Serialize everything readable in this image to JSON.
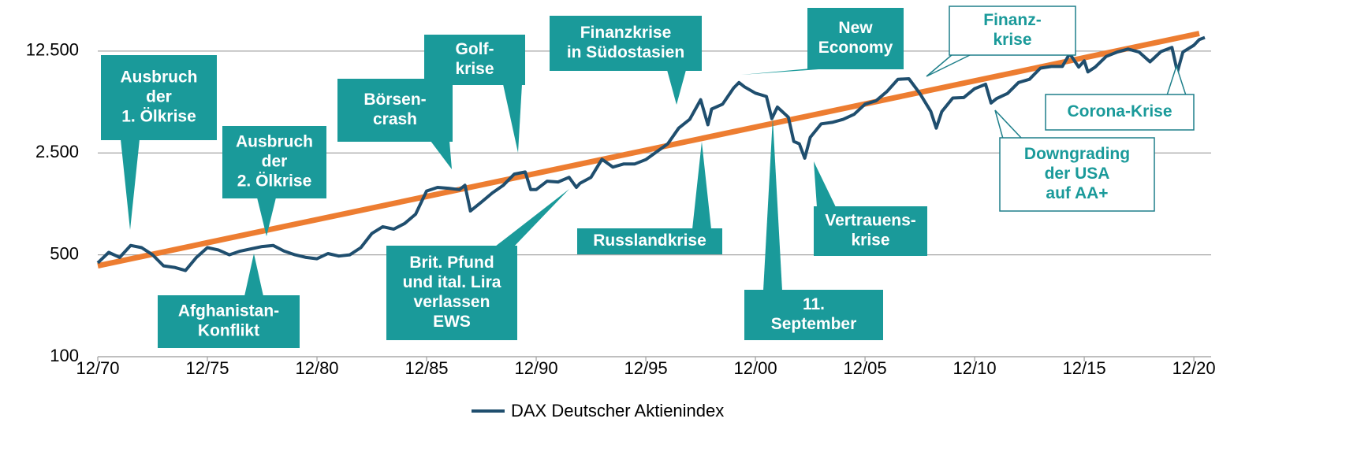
{
  "chart_data": {
    "type": "line",
    "legend": "bottom",
    "grid": true,
    "log_scale_y": true,
    "ylim": [
      100,
      16000
    ],
    "yticks": [
      100,
      500,
      {
        "value": 2500,
        "label": "2.500"
      },
      {
        "value": 12500,
        "label": "12.500"
      }
    ],
    "xlim": [
      "1970-12",
      "2021-06"
    ],
    "xticks": [
      {
        "value": "1970-12",
        "label": "12/70"
      },
      {
        "value": "1975-12",
        "label": "12/75"
      },
      {
        "value": "1980-12",
        "label": "12/80"
      },
      {
        "value": "1985-12",
        "label": "12/85"
      },
      {
        "value": "1990-12",
        "label": "12/90"
      },
      {
        "value": "1995-12",
        "label": "12/95"
      },
      {
        "value": "2000-12",
        "label": "12/00"
      },
      {
        "value": "2005-12",
        "label": "12/05"
      },
      {
        "value": "2010-12",
        "label": "12/10"
      },
      {
        "value": "2015-12",
        "label": "12/15"
      },
      {
        "value": "2020-12",
        "label": "12/20"
      }
    ],
    "series": [
      {
        "name": "DAX Deutscher Aktienindex",
        "color": "#1f4e6e",
        "x": [
          "1970-12",
          "1971-06",
          "1971-12",
          "1972-06",
          "1972-12",
          "1973-06",
          "1973-12",
          "1974-06",
          "1974-12",
          "1975-06",
          "1975-12",
          "1976-06",
          "1976-12",
          "1977-06",
          "1977-12",
          "1978-06",
          "1978-12",
          "1979-06",
          "1979-12",
          "1980-06",
          "1980-12",
          "1981-06",
          "1981-12",
          "1982-06",
          "1982-12",
          "1983-06",
          "1983-12",
          "1984-06",
          "1984-12",
          "1985-06",
          "1985-12",
          "1986-06",
          "1986-12",
          "1987-06",
          "1987-09",
          "1987-12",
          "1988-06",
          "1988-12",
          "1989-06",
          "1989-12",
          "1990-06",
          "1990-09",
          "1990-12",
          "1991-06",
          "1991-12",
          "1992-06",
          "1992-10",
          "1992-12",
          "1993-06",
          "1993-12",
          "1994-06",
          "1994-12",
          "1995-06",
          "1995-12",
          "1996-06",
          "1996-12",
          "1997-06",
          "1997-12",
          "1998-06",
          "1998-10",
          "1998-12",
          "1999-06",
          "1999-12",
          "2000-03",
          "2000-06",
          "2000-12",
          "2001-06",
          "2001-09",
          "2001-12",
          "2002-06",
          "2002-09",
          "2002-12",
          "2003-03",
          "2003-06",
          "2003-12",
          "2004-06",
          "2004-12",
          "2005-06",
          "2005-12",
          "2006-06",
          "2006-12",
          "2007-06",
          "2007-12",
          "2008-06",
          "2008-12",
          "2009-03",
          "2009-06",
          "2009-12",
          "2010-06",
          "2010-12",
          "2011-06",
          "2011-09",
          "2011-12",
          "2012-06",
          "2012-12",
          "2013-06",
          "2013-12",
          "2014-06",
          "2014-12",
          "2015-04",
          "2015-09",
          "2015-12",
          "2016-02",
          "2016-06",
          "2016-12",
          "2017-06",
          "2017-12",
          "2018-06",
          "2018-12",
          "2019-06",
          "2019-12",
          "2020-03",
          "2020-06",
          "2020-12",
          "2021-03",
          "2021-06"
        ],
        "values": [
          440,
          520,
          480,
          580,
          560,
          500,
          420,
          410,
          390,
          480,
          560,
          540,
          500,
          530,
          550,
          570,
          580,
          530,
          500,
          480,
          470,
          510,
          490,
          500,
          560,
          700,
          780,
          750,
          820,
          950,
          1370,
          1450,
          1430,
          1400,
          1500,
          1000,
          1150,
          1330,
          1500,
          1790,
          1850,
          1400,
          1400,
          1600,
          1580,
          1700,
          1450,
          1550,
          1700,
          2260,
          2000,
          2100,
          2100,
          2250,
          2550,
          2890,
          3700,
          4250,
          5800,
          3900,
          5000,
          5400,
          6960,
          7600,
          7100,
          6430,
          6100,
          4300,
          5160,
          4400,
          3000,
          2890,
          2300,
          3200,
          3960,
          4050,
          4250,
          4600,
          5400,
          5700,
          6600,
          8000,
          8070,
          6400,
          4810,
          3700,
          4800,
          5950,
          6000,
          6900,
          7400,
          5500,
          5900,
          6400,
          7600,
          8000,
          9550,
          9800,
          9800,
          12000,
          9700,
          10700,
          9000,
          9700,
          11480,
          12300,
          12900,
          12300,
          10550,
          12400,
          13250,
          9000,
          12300,
          13700,
          15000,
          15500
        ]
      },
      {
        "color": "#ed7d31",
        "x": [
          "1970-12",
          "2021-03"
        ],
        "values": [
          420,
          16500
        ]
      }
    ],
    "annotations": [
      {
        "text": [
          "Ausbruch",
          "der",
          "1. Ölkrise"
        ],
        "style": "filled"
      },
      {
        "text": [
          "Ausbruch",
          "der",
          "2. Ölkrise"
        ],
        "style": "filled"
      },
      {
        "text": [
          "Afghanistan-",
          "Konflikt"
        ],
        "style": "filled"
      },
      {
        "text": [
          "Börsen-",
          "crash"
        ],
        "style": "filled"
      },
      {
        "text": [
          "Golf-",
          "krise"
        ],
        "style": "filled"
      },
      {
        "text": [
          "Brit. Pfund",
          "und ital. Lira",
          "verlassen",
          "EWS"
        ],
        "style": "filled"
      },
      {
        "text": [
          "Finanzkrise",
          "in Südostasien"
        ],
        "style": "filled"
      },
      {
        "text": [
          "Russlandkrise"
        ],
        "style": "filled"
      },
      {
        "text": [
          "New",
          "Economy"
        ],
        "style": "filled"
      },
      {
        "text": [
          "11.",
          "September"
        ],
        "style": "filled"
      },
      {
        "text": [
          "Vertrauens-",
          "krise"
        ],
        "style": "filled"
      },
      {
        "text": [
          "Finanz-",
          "krise"
        ],
        "style": "outline"
      },
      {
        "text": [
          "Downgrading",
          "der USA",
          "auf AA+"
        ],
        "style": "outline"
      },
      {
        "text": [
          "Corona-Krise"
        ],
        "style": "outline"
      }
    ]
  }
}
